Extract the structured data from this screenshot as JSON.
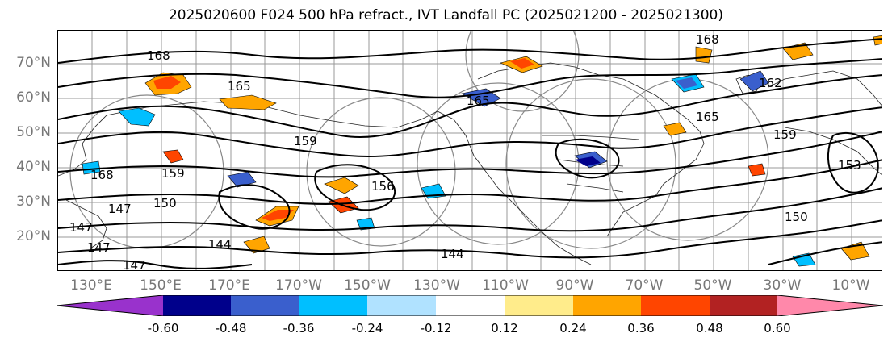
{
  "title": "2025020600 F024 500 hPa refract., IVT Landfall PC (2025021200 - 2025021300)",
  "lat_labels": [
    "70°N",
    "60°N",
    "50°N",
    "40°N",
    "30°N",
    "20°N"
  ],
  "lon_labels": [
    "130°E",
    "150°E",
    "170°E",
    "170°W",
    "150°W",
    "130°W",
    "110°W",
    "90°W",
    "70°W",
    "50°W",
    "30°W",
    "10°W"
  ],
  "contour_labels": [
    "168",
    "165",
    "159",
    "168",
    "159",
    "147",
    "150",
    "144",
    "147",
    "144",
    "147",
    "147",
    "168",
    "165",
    "165",
    "162",
    "150",
    "159",
    "156",
    "153"
  ],
  "colorbar": {
    "ticks": [
      "-0.60",
      "-0.48",
      "-0.36",
      "-0.24",
      "-0.12",
      "0.12",
      "0.24",
      "0.36",
      "0.48",
      "0.60"
    ],
    "colors": [
      "#9932cc",
      "#00008b",
      "#3a5fcd",
      "#00bfff",
      "#b0e2ff",
      "#ffffff",
      "#ffec8b",
      "#ffa500",
      "#ff4500",
      "#b22222",
      "#ff88aa"
    ]
  }
}
